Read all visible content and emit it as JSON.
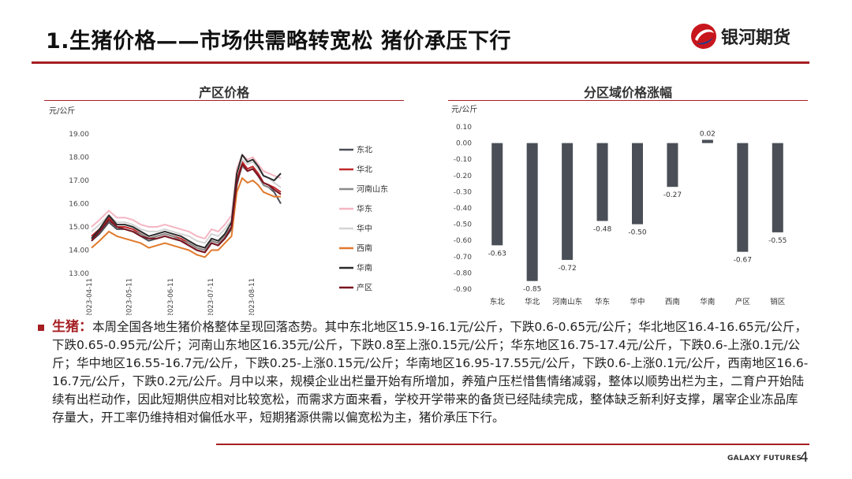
{
  "header": {
    "title": "1.生猪价格——市场供需略转宽松 猪价承压下行",
    "logo_text": "银河期货"
  },
  "colors": {
    "accent": "#a51e22",
    "bar": "#4a4f57"
  },
  "chart_data": [
    {
      "type": "line",
      "title": "产区价格",
      "ylabel": "元/公斤",
      "xlabel": "",
      "ylim": [
        13.0,
        19.0
      ],
      "yticks": [
        "19.00",
        "18.00",
        "17.00",
        "16.00",
        "15.00",
        "14.00",
        "13.00"
      ],
      "xticks": [
        "2023-04-11",
        "2023-05-11",
        "2023-06-11",
        "2023-07-11",
        "2023-08-11"
      ],
      "legend_position": "right",
      "x": [
        "2023-04-11",
        "2023-04-17",
        "2023-04-24",
        "2023-04-30",
        "2023-05-06",
        "2023-05-12",
        "2023-05-18",
        "2023-05-24",
        "2023-05-30",
        "2023-06-05",
        "2023-06-11",
        "2023-06-17",
        "2023-06-23",
        "2023-06-29",
        "2023-07-05",
        "2023-07-10",
        "2023-07-15",
        "2023-07-20",
        "2023-07-25",
        "2023-07-29",
        "2023-08-02",
        "2023-08-06",
        "2023-08-10",
        "2023-08-14",
        "2023-08-18",
        "2023-08-22",
        "2023-08-26",
        "2023-08-31"
      ],
      "series": [
        {
          "name": "东北",
          "color": "#4a4f57",
          "values": [
            14.4,
            14.7,
            15.2,
            14.9,
            14.9,
            14.8,
            14.6,
            14.4,
            14.5,
            14.6,
            14.5,
            14.4,
            14.2,
            14.0,
            13.9,
            14.3,
            14.2,
            14.5,
            14.9,
            16.8,
            17.7,
            17.4,
            17.5,
            17.2,
            16.8,
            16.7,
            16.5,
            16.0
          ]
        },
        {
          "name": "华北",
          "color": "#c0282b",
          "values": [
            14.6,
            14.9,
            15.4,
            15.0,
            15.0,
            14.9,
            14.7,
            14.5,
            14.6,
            14.7,
            14.6,
            14.5,
            14.3,
            14.1,
            14.0,
            14.4,
            14.3,
            14.6,
            15.0,
            17.0,
            17.8,
            17.5,
            17.6,
            17.3,
            16.9,
            16.8,
            16.7,
            16.5
          ]
        },
        {
          "name": "河南山东",
          "color": "#8a8a8a",
          "values": [
            14.5,
            14.8,
            15.3,
            15.0,
            14.9,
            14.8,
            14.7,
            14.5,
            14.6,
            14.7,
            14.6,
            14.4,
            14.3,
            14.1,
            14.0,
            14.4,
            14.3,
            14.6,
            15.0,
            16.9,
            17.6,
            17.4,
            17.5,
            17.2,
            16.8,
            16.7,
            16.6,
            16.4
          ]
        },
        {
          "name": "华东",
          "color": "#f4b6c2",
          "values": [
            15.0,
            15.3,
            15.7,
            15.4,
            15.4,
            15.3,
            15.1,
            15.0,
            15.0,
            15.1,
            15.0,
            14.9,
            14.8,
            14.6,
            14.5,
            14.9,
            14.8,
            15.1,
            15.5,
            17.5,
            18.1,
            17.9,
            18.0,
            17.7,
            17.4,
            17.3,
            17.2,
            17.1
          ]
        },
        {
          "name": "华中",
          "color": "#d4d4d4",
          "values": [
            14.8,
            15.1,
            15.5,
            15.2,
            15.2,
            15.1,
            14.9,
            14.8,
            14.8,
            14.9,
            14.8,
            14.7,
            14.6,
            14.4,
            14.3,
            14.7,
            14.6,
            14.9,
            15.3,
            17.3,
            17.9,
            17.7,
            17.8,
            17.5,
            17.2,
            17.1,
            16.9,
            16.7
          ]
        },
        {
          "name": "西南",
          "color": "#e0792b",
          "values": [
            14.1,
            14.4,
            14.8,
            14.6,
            14.5,
            14.4,
            14.3,
            14.1,
            14.2,
            14.3,
            14.2,
            14.1,
            14.0,
            13.8,
            13.7,
            14.0,
            14.0,
            14.3,
            14.6,
            16.5,
            17.1,
            16.9,
            17.0,
            16.8,
            16.5,
            16.4,
            16.3,
            16.3
          ]
        },
        {
          "name": "华南",
          "color": "#2b2b2b",
          "values": [
            14.5,
            14.9,
            15.5,
            15.1,
            15.1,
            15.0,
            14.8,
            14.6,
            14.7,
            14.8,
            14.7,
            14.6,
            14.4,
            14.2,
            14.1,
            14.5,
            14.4,
            14.7,
            15.2,
            17.3,
            18.1,
            17.8,
            17.9,
            17.6,
            17.2,
            17.1,
            17.0,
            17.3
          ]
        },
        {
          "name": "产区",
          "color": "#7a1420",
          "values": [
            14.4,
            14.8,
            15.3,
            15.0,
            14.9,
            14.8,
            14.6,
            14.5,
            14.5,
            14.6,
            14.5,
            14.4,
            14.2,
            14.0,
            13.9,
            14.3,
            14.2,
            14.5,
            15.0,
            16.9,
            17.7,
            17.4,
            17.5,
            17.2,
            16.9,
            16.8,
            16.6,
            16.4
          ]
        }
      ]
    },
    {
      "type": "bar",
      "title": "分区域价格涨幅",
      "ylabel": "元/公斤",
      "xlabel": "",
      "ylim": [
        -0.9,
        0.1
      ],
      "yticks": [
        "0.10",
        "0.00",
        "-0.10",
        "-0.20",
        "-0.30",
        "-0.40",
        "-0.50",
        "-0.60",
        "-0.70",
        "-0.80",
        "-0.90"
      ],
      "categories": [
        "东北",
        "华北",
        "河南山东",
        "华东",
        "华中",
        "西南",
        "华南",
        "产区",
        "销区"
      ],
      "values": [
        -0.63,
        -0.85,
        -0.72,
        -0.48,
        -0.5,
        -0.27,
        0.02,
        -0.67,
        -0.55
      ],
      "data_labels": [
        "-0.63",
        "-0.85",
        "-0.72",
        "-0.48",
        "-0.50",
        "-0.27",
        "0.02",
        "-0.67",
        "-0.55"
      ]
    }
  ],
  "body": {
    "lead": "生猪：",
    "text": "本周全国各地生猪价格整体呈现回落态势。其中东北地区15.9-16.1元/公斤，下跌0.6-0.65元/公斤；华北地区16.4-16.65元/公斤，下跌0.65-0.95元/公斤；河南山东地区16.35元/公斤，下跌0.8至上涨0.15元/公斤；华东地区16.75-17.4元/公斤，下跌0.6-上涨0.1元/公斤；华中地区16.55-16.7元/公斤，下跌0.25-上涨0.15元/公斤；华南地区16.95-17.55元/公斤，下跌0.6-上涨0.1元/公斤，西南地区16.6-16.7元/公斤，下跌0.2元/公斤。月中以来，规模企业出栏量开始有所增加，养殖户压栏惜售情绪减弱，整体以顺势出栏为主，二育户开始陆续有出栏动作，因此短期供应相对比较宽松，而需求方面来看，学校开学带来的备货已经陆续完成，整体缺乏新利好支撑，屠宰企业冻品库存量大，开工率仍维持相对偏低水平，短期猪源供需以偏宽松为主，猪价承压下行。"
  },
  "footer": {
    "brand": "GALAXY FUTURES",
    "page": "4"
  }
}
